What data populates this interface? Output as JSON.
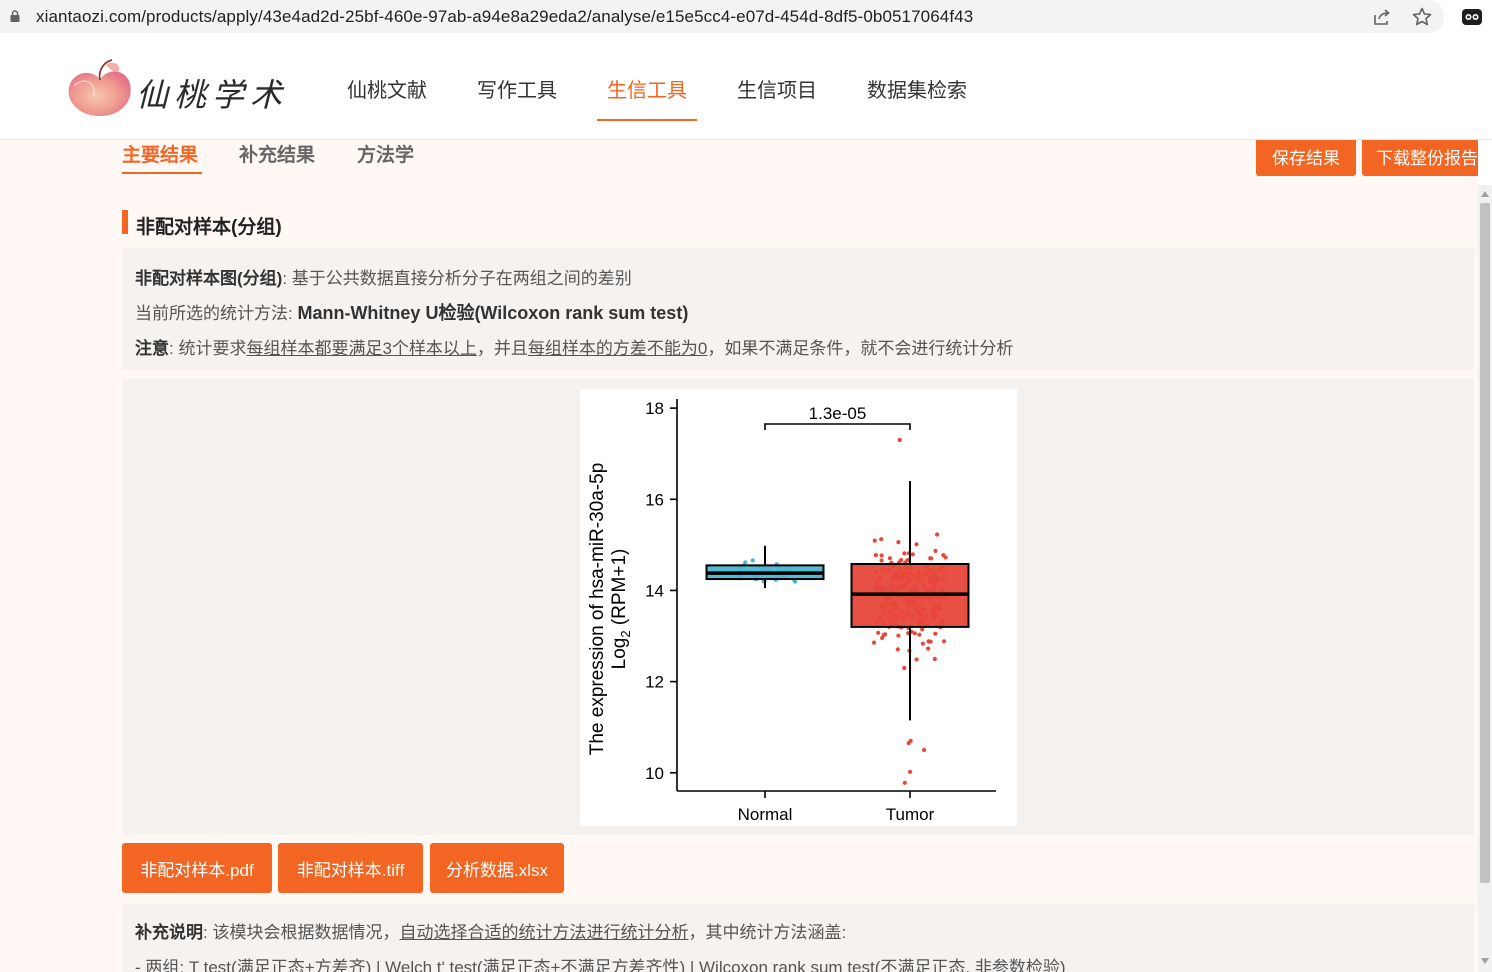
{
  "browser": {
    "url": "xiantaozi.com/products/apply/43e4ad2d-25bf-460e-97ab-a94e8a29eda2/analyse/e15e5cc4-e07d-454d-8df5-0b0517064f43"
  },
  "header": {
    "logo_text": "仙桃学术",
    "nav": [
      {
        "label": "仙桃文献"
      },
      {
        "label": "写作工具"
      },
      {
        "label": "生信工具",
        "active": true
      },
      {
        "label": "生信项目"
      },
      {
        "label": "数据集检索"
      }
    ]
  },
  "tabs": [
    {
      "label": "主要结果",
      "active": true
    },
    {
      "label": "补充结果"
    },
    {
      "label": "方法学"
    }
  ],
  "actions": {
    "save_label": "保存结果",
    "download_label": "下载整份报告"
  },
  "section": {
    "title": "非配对样本(分组)",
    "desc_label": "非配对样本图(分组)",
    "desc_text": ": 基于公共数据直接分析分子在两组之间的差别",
    "method_prefix": "当前所选的统计方法: ",
    "method_value": "Mann-Whitney U检验(Wilcoxon rank sum test)",
    "note_label": "注意",
    "note_p1": ": 统计要求",
    "note_u1": "每组样本都要满足3个样本以上",
    "note_p2": "，并且",
    "note_u2": "每组样本的方差不能为0",
    "note_p3": "，如果不满足条件，就不会进行统计分析"
  },
  "downloads": [
    {
      "label": "非配对样本.pdf"
    },
    {
      "label": "非配对样本.tiff"
    },
    {
      "label": "分析数据.xlsx"
    }
  ],
  "supplement": {
    "label": "补充说明",
    "p1": ": 该模块会根据数据情况，",
    "u1": "自动选择合适的统计方法进行统计分析",
    "p2": "，其中统计方法涵盖:",
    "line2": "- 两组: T test(满足正态+方差齐) | Welch t' test(满足正态+不满足方差齐性) | Wilcoxon rank sum test(不满足正态, 非参数检验)"
  },
  "chart_data": {
    "type": "boxplot",
    "categories": [
      "Normal",
      "Tumor"
    ],
    "ylabel_line1": "The expression of hsa-miR-30a-5p",
    "ylabel_line2": "Log",
    "ylabel_sub": "2",
    "ylabel_line2_tail": " (RPM+1)",
    "yticks": [
      10,
      12,
      14,
      16,
      18
    ],
    "ylim": [
      9.6,
      18.2
    ],
    "pvalue_label": "1.3e-05",
    "series": [
      {
        "category": "Normal",
        "color": "#4bb5cf",
        "whisker_low": 14.05,
        "q1": 14.25,
        "median": 14.38,
        "q3": 14.55,
        "whisker_high": 14.98,
        "n_points": 40
      },
      {
        "category": "Tumor",
        "color": "#e8473a",
        "whisker_low": 11.15,
        "q1": 13.2,
        "median": 13.92,
        "q3": 14.58,
        "whisker_high": 16.4,
        "n_points": 230,
        "outliers": [
          10.5,
          10.65,
          10.7,
          9.78,
          10.02,
          17.3
        ]
      }
    ]
  }
}
